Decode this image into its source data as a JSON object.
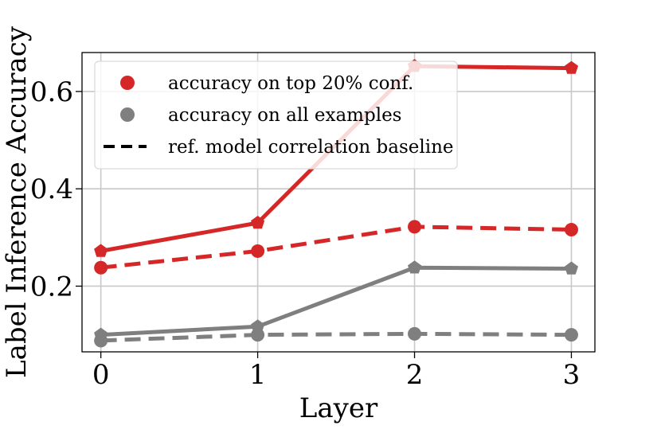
{
  "chart_data": {
    "type": "line",
    "xlabel": "Layer",
    "ylabel": "Label Inference Accuracy",
    "x": [
      0,
      1,
      2,
      3
    ],
    "x_ticks": [
      "0",
      "1",
      "2",
      "3"
    ],
    "y_ticks": [
      "0.2",
      "0.4",
      "0.6"
    ],
    "xlim": [
      -0.12,
      3.15
    ],
    "ylim": [
      0.065,
      0.68
    ],
    "grid": true,
    "legend_position": "upper-left",
    "legend": [
      {
        "label": "accuracy on top 20% conf.",
        "marker": "circle",
        "color": "#d62728"
      },
      {
        "label": "accuracy on all examples",
        "marker": "circle",
        "color": "#7f7f7f"
      },
      {
        "label": "ref. model correlation baseline",
        "marker": "dashed-line",
        "color": "#000000"
      }
    ],
    "series": [
      {
        "values": [
          0.272,
          0.33,
          0.652,
          0.648
        ],
        "color": "#d62728",
        "line": "solid",
        "marker": "pentagon"
      },
      {
        "values": [
          0.238,
          0.272,
          0.322,
          0.316
        ],
        "color": "#d62728",
        "line": "dashed",
        "marker": "circle"
      },
      {
        "values": [
          0.1,
          0.117,
          0.238,
          0.236
        ],
        "color": "#7f7f7f",
        "line": "solid",
        "marker": "pentagon"
      },
      {
        "values": [
          0.088,
          0.1,
          0.102,
          0.1
        ],
        "color": "#7f7f7f",
        "line": "dashed",
        "marker": "circle"
      }
    ]
  }
}
